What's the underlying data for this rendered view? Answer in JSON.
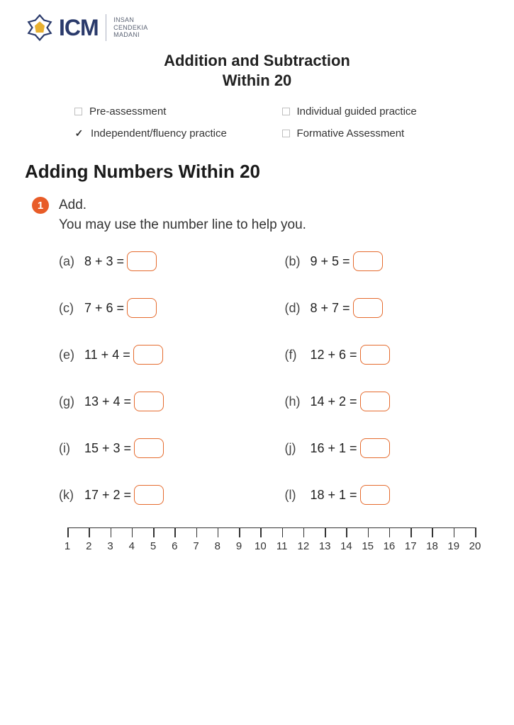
{
  "logo": {
    "acronym": "ICM",
    "sub1": "INSAN",
    "sub2": "CENDEKIA",
    "sub3": "MADANI",
    "emblem_color_outer": "#2a3a6b",
    "emblem_color_inner": "#e8b030"
  },
  "title_line1": "Addition and Subtraction",
  "title_line2": "Within 20",
  "options": [
    {
      "label": "Pre-assessment",
      "checked": false
    },
    {
      "label": "Individual guided practice",
      "checked": false
    },
    {
      "label": "Independent/fluency practice",
      "checked": true
    },
    {
      "label": "Formative Assessment",
      "checked": false
    }
  ],
  "section_heading": "Adding Numbers Within 20",
  "question": {
    "number": "1",
    "badge_color": "#e85c28",
    "line1": "Add.",
    "line2": "You may use the number line to help you."
  },
  "problems": [
    {
      "label": "(a)",
      "expr": "8 + 3 ="
    },
    {
      "label": "(b)",
      "expr": "9 + 5 ="
    },
    {
      "label": "(c)",
      "expr": "7 + 6 ="
    },
    {
      "label": "(d)",
      "expr": "8 + 7 ="
    },
    {
      "label": "(e)",
      "expr": "11 + 4 ="
    },
    {
      "label": "(f)",
      "expr": "12 + 6 ="
    },
    {
      "label": "(g)",
      "expr": "13 + 4 ="
    },
    {
      "label": "(h)",
      "expr": "14 + 2 ="
    },
    {
      "label": "(i)",
      "expr": "15 + 3 ="
    },
    {
      "label": "(j)",
      "expr": "16 + 1 ="
    },
    {
      "label": "(k)",
      "expr": "17 + 2 ="
    },
    {
      "label": "(l)",
      "expr": "18 + 1 ="
    }
  ],
  "answer_box": {
    "border_color": "#e56b2e",
    "border_radius": 8,
    "width": 42,
    "height": 28
  },
  "number_line": {
    "min": 1,
    "max": 20,
    "tick_labels": [
      "1",
      "2",
      "3",
      "4",
      "5",
      "6",
      "7",
      "8",
      "9",
      "10",
      "11",
      "12",
      "13",
      "14",
      "15",
      "16",
      "17",
      "18",
      "19",
      "20"
    ],
    "line_color": "#333333"
  },
  "colors": {
    "background": "#ffffff",
    "text": "#222222",
    "accent_orange": "#e85c28"
  }
}
